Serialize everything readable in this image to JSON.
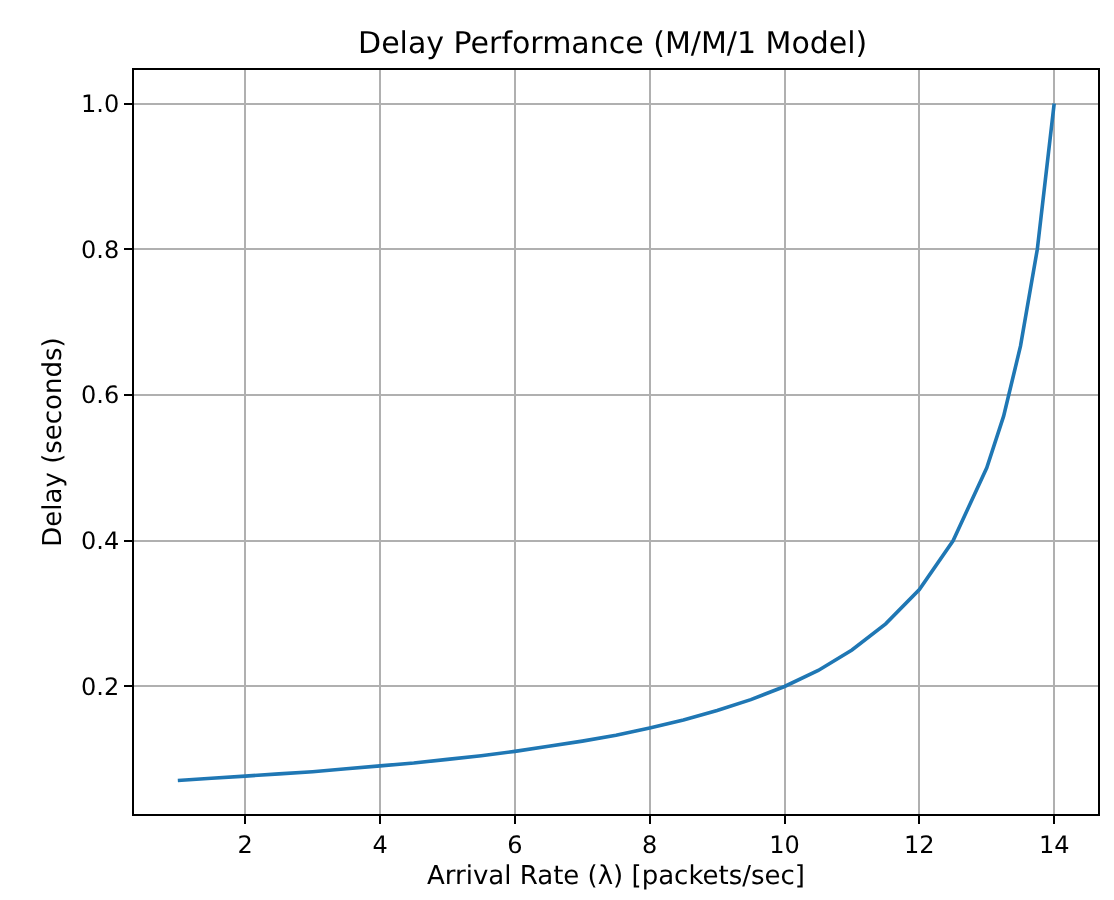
{
  "chart_data": {
    "type": "line",
    "title": "Delay Performance (M/M/1 Model)",
    "xlabel": "Arrival Rate (λ) [packets/sec]",
    "ylabel": "Delay (seconds)",
    "x": [
      1,
      1.5,
      2,
      2.5,
      3,
      3.5,
      4,
      4.5,
      5,
      5.5,
      6,
      6.5,
      7,
      7.5,
      8,
      8.5,
      9,
      9.5,
      10,
      10.5,
      11,
      11.5,
      12,
      12.5,
      13,
      13.25,
      13.5,
      13.75,
      14
    ],
    "series": [
      {
        "color": "#1f77b4",
        "values": [
          0.071,
          0.074,
          0.077,
          0.08,
          0.083,
          0.087,
          0.091,
          0.095,
          0.1,
          0.105,
          0.111,
          0.118,
          0.125,
          0.133,
          0.143,
          0.154,
          0.167,
          0.182,
          0.2,
          0.222,
          0.25,
          0.286,
          0.333,
          0.4,
          0.5,
          0.571,
          0.667,
          0.8,
          1.0
        ]
      }
    ],
    "xlim": [
      0.35,
      14.65
    ],
    "ylim": [
      0.025,
      1.046
    ],
    "xticks": [
      2,
      4,
      6,
      8,
      10,
      12,
      14
    ],
    "yticks": [
      {
        "value": 0.2,
        "label": "0.2"
      },
      {
        "value": 0.4,
        "label": "0.4"
      },
      {
        "value": 0.6,
        "label": "0.6"
      },
      {
        "value": 0.8,
        "label": "0.8"
      },
      {
        "value": 1.0,
        "label": "1.0"
      }
    ],
    "grid": true,
    "legend": false
  }
}
